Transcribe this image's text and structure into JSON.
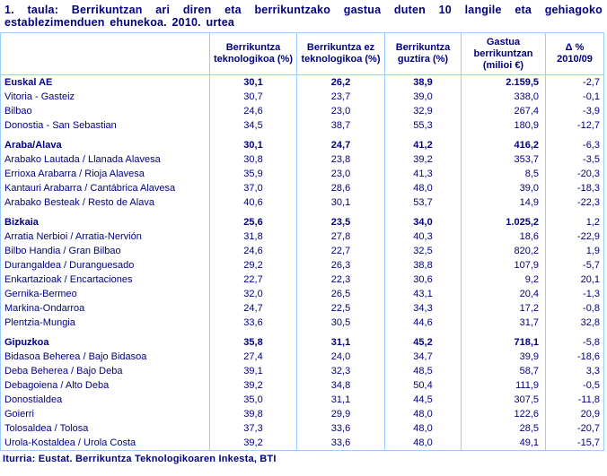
{
  "page": {
    "title": "1. taula: Berrikuntzan ari diren eta berrikuntzako gastua duten 10 langile eta gehiagoko establezimenduen ehunekoa. 2010. urtea",
    "source_note": "Iturria: Eustat. Berrikuntza Teknologikoaren Inkesta, BTI"
  },
  "colors": {
    "text_navy": "#000080",
    "border_blue": "#99CCFF"
  },
  "chart_data": {
    "type": "table",
    "columns": [
      "",
      "Berrikuntza teknologikoa (%)",
      "Berrikuntza ez teknologikoa (%)",
      "Berrikuntza guztira (%)",
      "Gastua berrikuntzan (milioi €)",
      "Δ % 2010/09"
    ],
    "sections": [
      {
        "rows": [
          {
            "label": "Euskal AE",
            "bold": true,
            "values": [
              "30,1",
              "26,2",
              "38,9",
              "2.159,5",
              "-2,7"
            ]
          },
          {
            "label": "Vitoria - Gasteiz",
            "bold": false,
            "values": [
              "30,7",
              "23,7",
              "39,0",
              "338,0",
              "-0,1"
            ]
          },
          {
            "label": "Bilbao",
            "bold": false,
            "values": [
              "24,6",
              "23,0",
              "32,9",
              "267,4",
              "-3,9"
            ]
          },
          {
            "label": "Donostia - San Sebastian",
            "bold": false,
            "values": [
              "34,5",
              "38,7",
              "55,3",
              "180,9",
              "-12,7"
            ]
          }
        ]
      },
      {
        "rows": [
          {
            "label": "Araba/Alava",
            "bold": true,
            "values": [
              "30,1",
              "24,7",
              "41,2",
              "416,2",
              "-6,3"
            ]
          },
          {
            "label": "Arabako Lautada / Llanada Alavesa",
            "bold": false,
            "values": [
              "30,8",
              "23,8",
              "39,2",
              "353,7",
              "-3,5"
            ]
          },
          {
            "label": "Errioxa Arabarra / Rioja Alavesa",
            "bold": false,
            "values": [
              "35,9",
              "23,0",
              "41,3",
              "8,5",
              "-20,3"
            ]
          },
          {
            "label": "Kantauri Arabarra / Cantábrica Alavesa",
            "bold": false,
            "values": [
              "37,0",
              "28,6",
              "48,0",
              "39,0",
              "-18,3"
            ]
          },
          {
            "label": "Arabako Besteak / Resto de Alava",
            "bold": false,
            "values": [
              "40,6",
              "30,1",
              "53,7",
              "14,9",
              "-22,3"
            ]
          }
        ]
      },
      {
        "rows": [
          {
            "label": "Bizkaia",
            "bold": true,
            "values": [
              "25,6",
              "23,5",
              "34,0",
              "1.025,2",
              "1,2"
            ]
          },
          {
            "label": "Arratia Nerbioi / Arratia-Nervión",
            "bold": false,
            "values": [
              "31,8",
              "27,8",
              "40,3",
              "18,6",
              "-22,9"
            ]
          },
          {
            "label": "Bilbo Handia / Gran Bilbao",
            "bold": false,
            "values": [
              "24,6",
              "22,7",
              "32,5",
              "820,2",
              "1,9"
            ]
          },
          {
            "label": "Durangaldea / Duranguesado",
            "bold": false,
            "values": [
              "29,2",
              "26,3",
              "38,8",
              "107,9",
              "-5,7"
            ]
          },
          {
            "label": "Enkartazioak / Encartaciones",
            "bold": false,
            "values": [
              "22,7",
              "22,3",
              "30,6",
              "9,2",
              "20,1"
            ]
          },
          {
            "label": "Gernika-Bermeo",
            "bold": false,
            "values": [
              "32,0",
              "26,5",
              "43,1",
              "20,4",
              "-1,3"
            ]
          },
          {
            "label": "Markina-Ondarroa",
            "bold": false,
            "values": [
              "24,7",
              "22,5",
              "34,3",
              "17,2",
              "-0,8"
            ]
          },
          {
            "label": "Plentzia-Mungia",
            "bold": false,
            "values": [
              "33,6",
              "30,5",
              "44,6",
              "31,7",
              "32,8"
            ]
          }
        ]
      },
      {
        "rows": [
          {
            "label": "Gipuzkoa",
            "bold": true,
            "values": [
              "35,8",
              "31,1",
              "45,2",
              "718,1",
              "-5,8"
            ]
          },
          {
            "label": "Bidasoa Beherea / Bajo Bidasoa",
            "bold": false,
            "values": [
              "27,4",
              "24,0",
              "34,7",
              "39,9",
              "-18,6"
            ]
          },
          {
            "label": "Deba Beherea / Bajo Deba",
            "bold": false,
            "values": [
              "39,1",
              "32,3",
              "48,5",
              "58,7",
              "3,3"
            ]
          },
          {
            "label": "Debagoiena / Alto Deba",
            "bold": false,
            "values": [
              "39,2",
              "34,8",
              "50,4",
              "111,9",
              "-0,5"
            ]
          },
          {
            "label": "Donostialdea",
            "bold": false,
            "values": [
              "35,0",
              "31,1",
              "44,5",
              "307,5",
              "-11,8"
            ]
          },
          {
            "label": "Goierri",
            "bold": false,
            "values": [
              "39,8",
              "29,9",
              "48,0",
              "122,6",
              "20,9"
            ]
          },
          {
            "label": "Tolosaldea / Tolosa",
            "bold": false,
            "values": [
              "37,3",
              "33,6",
              "48,0",
              "28,5",
              "-20,7"
            ]
          },
          {
            "label": "Urola-Kostaldea / Urola Costa",
            "bold": false,
            "values": [
              "39,2",
              "33,6",
              "48,0",
              "49,1",
              "-15,7"
            ]
          }
        ]
      }
    ]
  }
}
